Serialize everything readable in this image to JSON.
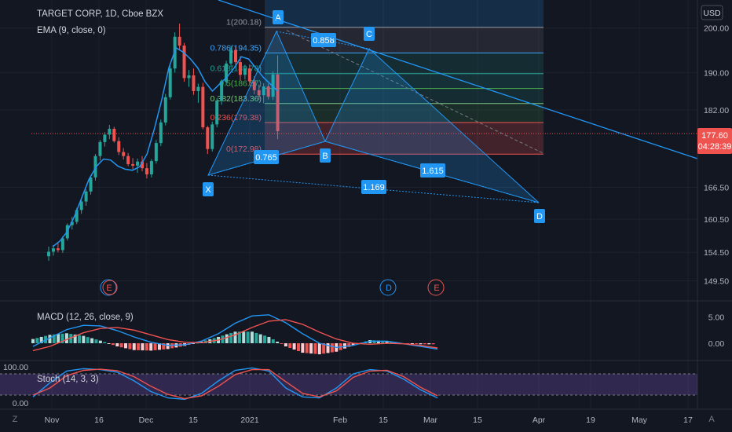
{
  "header": {
    "symbol_line": "TARGET CORP, 1D, Cboe BZX",
    "ema_label": "EMA (9, close, 0)",
    "currency": "USD"
  },
  "price_tags": {
    "last": "177.60",
    "countdown": "04:28:39"
  },
  "fib_labels": [
    "1(200.18)",
    "0.786(194.35)",
    "0.618(189.78)",
    "0.5(186.57)",
    "0.382(183.36)",
    "0.236(179.38)",
    "0(172.98)"
  ],
  "pattern": {
    "points": [
      "X",
      "A",
      "B",
      "C",
      "D"
    ],
    "ratios": {
      "xab": "0.765",
      "abc": "0.858",
      "bcd": "1.615",
      "xad": "1.169"
    }
  },
  "event_markers": [
    {
      "text": "E",
      "kind": "earnings"
    },
    {
      "text": "D",
      "kind": "dividend"
    },
    {
      "text": "E",
      "kind": "earnings"
    }
  ],
  "macd_label": "MACD (12, 26, close, 9)",
  "stoch_label": "Stoch (14, 3, 3)",
  "time_axis": [
    "Nov",
    "16",
    "Dec",
    "15",
    "2021",
    "Feb",
    "15",
    "Mar",
    "15",
    "Apr",
    "19",
    "May",
    "17"
  ],
  "corner_left": "Z",
  "corner_right": "A",
  "colors": {
    "up": "#26a69a",
    "down": "#ef5350",
    "ema": "#2196f3",
    "macd": "#2196f3",
    "signal": "#ef5350",
    "pattern": "#2196f3",
    "background": "#131722",
    "stoch_band": "#7e57c2"
  },
  "chart_data": [
    {
      "type": "candlestick",
      "title": "TARGET CORP, 1D, Cboe BZX",
      "y_scale": "log",
      "ylim": [
        146.5,
        206.0
      ],
      "y_ticks": [
        "200.00",
        "190.00",
        "182.00",
        "166.50",
        "160.50",
        "154.50",
        "149.50"
      ],
      "x_ticks": [
        "Nov",
        "16",
        "Dec",
        "15",
        "2021",
        "Feb",
        "15",
        "Mar",
        "15",
        "Apr",
        "19",
        "May",
        "17"
      ],
      "series": [
        {
          "name": "EMA (9, close, 0)",
          "values": [
            155.5,
            156.5,
            158.2,
            161.0,
            164.5,
            168.0,
            170.5,
            172.0,
            171.8,
            170.6,
            170.0,
            169.8,
            170.5,
            173.0,
            178.0,
            184.0,
            191.0,
            195.5,
            194.5,
            193.0,
            191.0,
            188.0,
            186.0,
            187.5,
            189.0,
            191.0,
            193.5,
            193.0,
            191.0,
            189.0,
            187.5,
            186.0
          ]
        }
      ],
      "ohlc": [
        [
          153.8,
          155.5,
          153.0,
          154.6
        ],
        [
          154.6,
          155.8,
          153.9,
          155.2
        ],
        [
          155.2,
          156.2,
          154.5,
          154.9
        ],
        [
          154.9,
          157.4,
          154.4,
          157.0
        ],
        [
          157.0,
          159.7,
          156.6,
          159.4
        ],
        [
          159.4,
          160.9,
          158.6,
          160.0
        ],
        [
          160.0,
          162.6,
          159.6,
          162.2
        ],
        [
          162.2,
          164.3,
          161.5,
          163.8
        ],
        [
          163.8,
          166.1,
          163.0,
          165.7
        ],
        [
          165.7,
          168.8,
          165.1,
          168.4
        ],
        [
          168.4,
          173.0,
          167.8,
          172.6
        ],
        [
          172.6,
          175.8,
          171.7,
          175.4
        ],
        [
          175.4,
          177.4,
          174.5,
          176.9
        ],
        [
          176.9,
          178.9,
          176.0,
          178.1
        ],
        [
          178.1,
          178.5,
          175.3,
          175.6
        ],
        [
          175.6,
          176.4,
          172.8,
          173.4
        ],
        [
          173.4,
          174.2,
          171.9,
          172.6
        ],
        [
          172.6,
          173.2,
          170.6,
          171.0
        ],
        [
          171.0,
          172.2,
          170.0,
          170.7
        ],
        [
          170.7,
          172.1,
          169.3,
          171.5
        ],
        [
          171.5,
          172.6,
          169.6,
          170.2
        ],
        [
          170.2,
          171.2,
          168.2,
          169.0
        ],
        [
          169.0,
          172.0,
          168.4,
          171.6
        ],
        [
          171.6,
          175.8,
          171.1,
          175.2
        ],
        [
          175.2,
          180.0,
          174.6,
          179.4
        ],
        [
          179.4,
          185.4,
          178.8,
          184.7
        ],
        [
          184.7,
          191.5,
          184.2,
          190.9
        ],
        [
          190.9,
          199.0,
          190.0,
          198.0
        ],
        [
          198.0,
          201.0,
          195.0,
          196.0
        ],
        [
          196.0,
          196.6,
          188.0,
          188.8
        ],
        [
          188.8,
          190.6,
          186.9,
          189.4
        ],
        [
          189.4,
          190.9,
          185.2,
          186.0
        ],
        [
          186.0,
          187.6,
          183.5,
          186.9
        ],
        [
          186.9,
          187.8,
          178.0,
          178.4
        ],
        [
          178.4,
          178.7,
          173.0,
          174.0
        ],
        [
          174.0,
          179.6,
          173.5,
          179.0
        ],
        [
          179.0,
          184.5,
          178.4,
          183.9
        ],
        [
          183.9,
          188.5,
          183.1,
          188.0
        ],
        [
          188.0,
          192.6,
          187.3,
          192.0
        ],
        [
          192.0,
          196.0,
          191.3,
          195.0
        ],
        [
          195.0,
          195.8,
          191.5,
          192.3
        ],
        [
          192.3,
          193.6,
          188.3,
          189.5
        ],
        [
          189.5,
          191.7,
          188.5,
          190.9
        ],
        [
          190.9,
          191.8,
          187.2,
          188.1
        ],
        [
          188.1,
          189.2,
          185.3,
          186.2
        ],
        [
          186.2,
          187.4,
          184.2,
          185.1
        ],
        [
          185.1,
          187.7,
          183.4,
          187.0
        ],
        [
          187.0,
          187.6,
          184.2,
          184.8
        ],
        [
          184.8,
          190.3,
          184.1,
          189.6
        ],
        [
          189.6,
          193.8,
          176.0,
          177.6
        ]
      ]
    },
    {
      "type": "line",
      "title": "MACD (12, 26, close, 9)",
      "y_ticks": [
        "5.00",
        "0.00"
      ],
      "series": [
        {
          "name": "MACD",
          "values": [
            -0.6,
            1.0,
            2.6,
            3.4,
            3.3,
            2.4,
            1.2,
            0.2,
            -0.4,
            -0.3,
            0.4,
            1.8,
            3.8,
            5.2,
            5.4,
            3.9,
            1.8,
            0.0,
            -0.8,
            -0.4,
            0.4,
            0.4,
            -0.1,
            -0.6,
            -1.1
          ]
        },
        {
          "name": "Signal",
          "values": [
            -1.4,
            -0.6,
            0.7,
            2.0,
            2.8,
            3.0,
            2.5,
            1.6,
            0.7,
            0.2,
            0.1,
            0.6,
            1.6,
            3.0,
            4.2,
            4.5,
            3.6,
            2.1,
            0.8,
            0.0,
            -0.2,
            0.0,
            -0.1,
            -0.4,
            -0.9
          ]
        }
      ]
    },
    {
      "type": "line",
      "title": "Stoch (14, 3, 3)",
      "ylim": [
        0,
        100
      ],
      "y_ticks": [
        "100.00",
        "0.00"
      ],
      "series": [
        {
          "name": "%K",
          "values": [
            15,
            55,
            88,
            95,
            92,
            85,
            60,
            30,
            12,
            8,
            25,
            60,
            90,
            97,
            88,
            40,
            15,
            12,
            40,
            80,
            92,
            88,
            65,
            35,
            12
          ]
        },
        {
          "name": "%D",
          "values": [
            20,
            40,
            75,
            90,
            93,
            89,
            72,
            45,
            22,
            10,
            18,
            45,
            78,
            92,
            92,
            58,
            25,
            15,
            32,
            70,
            88,
            90,
            72,
            42,
            18
          ]
        }
      ]
    }
  ]
}
